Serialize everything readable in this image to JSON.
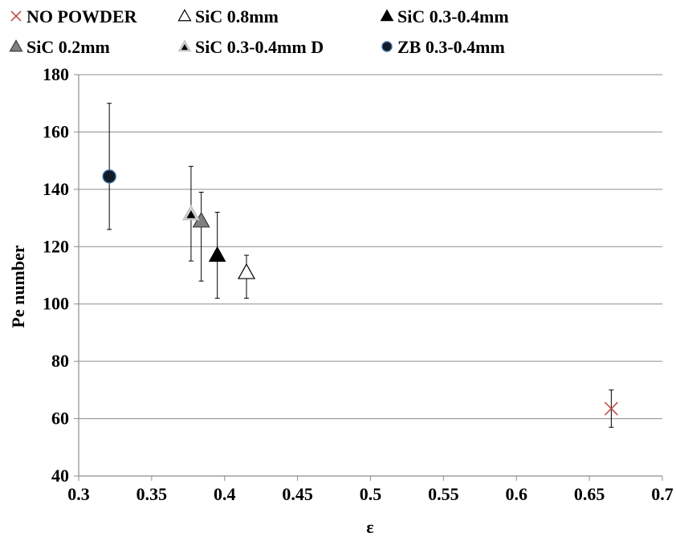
{
  "chart_data": {
    "type": "scatter",
    "title": "",
    "xlabel": "ε",
    "ylabel": "Pe number",
    "xlim": [
      0.3,
      0.7
    ],
    "ylim": [
      40,
      180
    ],
    "xticks": [
      "0.3",
      "0.35",
      "0.4",
      "0.45",
      "0.5",
      "0.55",
      "0.6",
      "0.65",
      "0.7"
    ],
    "yticks": [
      "40",
      "60",
      "80",
      "100",
      "120",
      "140",
      "160",
      "180"
    ],
    "grid": "horizontal",
    "legend_position": "top",
    "series": [
      {
        "name": "NO POWDER",
        "marker": "cross",
        "color": "#c0504d",
        "x": 0.665,
        "y": 63.5,
        "y_err_low": 57,
        "y_err_high": 70
      },
      {
        "name": "SiC 0.8mm",
        "marker": "triangle-open",
        "color": "#000000",
        "x": 0.415,
        "y": 111,
        "y_err_low": 102,
        "y_err_high": 117
      },
      {
        "name": "SiC 0.3-0.4mm",
        "marker": "triangle-black",
        "color": "#000000",
        "x": 0.395,
        "y": 117,
        "y_err_low": 102,
        "y_err_high": 132
      },
      {
        "name": "SiC 0.2mm",
        "marker": "triangle-gray",
        "color": "#808080",
        "x": 0.384,
        "y": 129,
        "y_err_low": 108,
        "y_err_high": 139
      },
      {
        "name": "SiC 0.3-0.4mm D",
        "marker": "triangle-black-lightborder",
        "color": "#c8c8c8",
        "x": 0.377,
        "y": 131.5,
        "y_err_low": 115,
        "y_err_high": 148
      },
      {
        "name": "ZB 0.3-0.4mm",
        "marker": "circle-dark",
        "color": "#1f2d3a",
        "x": 0.321,
        "y": 144.5,
        "y_err_low": 126,
        "y_err_high": 170
      }
    ]
  }
}
